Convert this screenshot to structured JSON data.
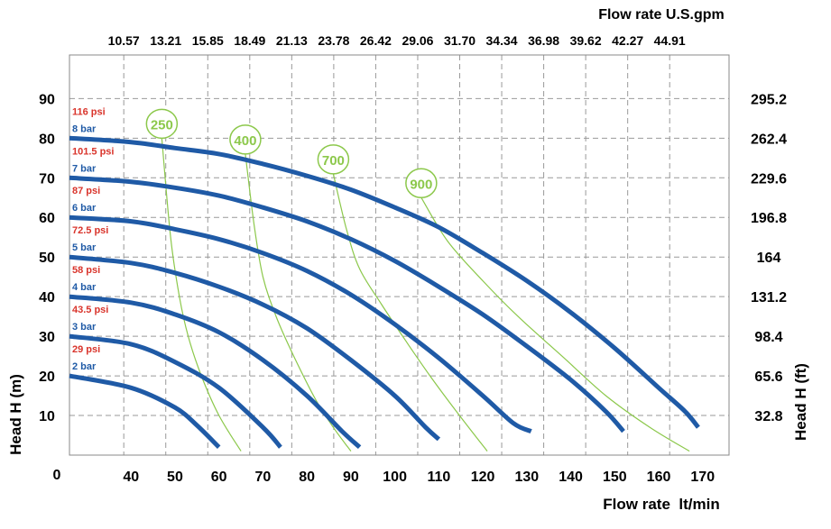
{
  "chart_data": {
    "type": "line",
    "top_axis_title": "Flow rate U.S.gpm",
    "bottom_axis_title": "Flow rate  lt/min",
    "left_axis_title": "Head H (m)",
    "right_axis_title": "Head H (ft)",
    "origin_label": "0",
    "x_range": [
      26,
      176
    ],
    "y_range": [
      0,
      101
    ],
    "x_ticks": [
      40,
      50,
      60,
      70,
      80,
      90,
      100,
      110,
      120,
      130,
      140,
      150,
      160,
      170
    ],
    "x_tick_labels": [
      "40",
      "50",
      "60",
      "70",
      "80",
      "90",
      "100",
      "110",
      "120",
      "130",
      "140",
      "150",
      "160",
      "170"
    ],
    "top_ticks": [
      38.35,
      47.9,
      57.45,
      67.0,
      76.55,
      86.1,
      95.65,
      105.2,
      114.75,
      124.3,
      133.85,
      143.4,
      152.95,
      162.5
    ],
    "top_tick_labels": [
      "10.57",
      "13.21",
      "15.85",
      "18.49",
      "21.13",
      "23.78",
      "26.42",
      "29.06",
      "31.70",
      "34.34",
      "36.98",
      "39.62",
      "42.27",
      "44.91"
    ],
    "y_ticks": [
      10,
      20,
      30,
      40,
      50,
      60,
      70,
      80,
      90
    ],
    "y_tick_labels": [
      "10",
      "20",
      "30",
      "40",
      "50",
      "60",
      "70",
      "80",
      "90"
    ],
    "right_ticks": [
      10,
      20,
      30,
      40,
      50,
      60,
      70,
      80,
      90
    ],
    "right_tick_labels": [
      "32.8",
      "65.6",
      "98.4",
      "131.2",
      "164",
      "196.8",
      "229.6",
      "262.4",
      "295.2"
    ],
    "grid": true,
    "colors": {
      "curve": "#1f5aa6",
      "efficiency": "#8cc84b",
      "psi": "#d9342b",
      "bar": "#1f5aa6",
      "grid": "#999999"
    },
    "series": [
      {
        "name": "2 bar",
        "psi": "29 psi",
        "points": [
          [
            26,
            20
          ],
          [
            40,
            17
          ],
          [
            50,
            12
          ],
          [
            55,
            7.5
          ],
          [
            60,
            2
          ]
        ]
      },
      {
        "name": "3 bar",
        "psi": "43.5 psi",
        "points": [
          [
            26,
            30
          ],
          [
            40,
            28
          ],
          [
            50,
            23.5
          ],
          [
            60,
            17
          ],
          [
            70,
            7
          ],
          [
            74,
            2
          ]
        ]
      },
      {
        "name": "4 bar",
        "psi": "58 psi",
        "points": [
          [
            26,
            40
          ],
          [
            40,
            38.5
          ],
          [
            50,
            35.5
          ],
          [
            60,
            31
          ],
          [
            70,
            24
          ],
          [
            80,
            15
          ],
          [
            88,
            6
          ],
          [
            92,
            2
          ]
        ]
      },
      {
        "name": "5 bar",
        "psi": "72.5 psi",
        "points": [
          [
            26,
            50
          ],
          [
            40,
            48.5
          ],
          [
            50,
            46
          ],
          [
            60,
            42.5
          ],
          [
            70,
            38
          ],
          [
            80,
            32
          ],
          [
            90,
            24
          ],
          [
            100,
            15
          ],
          [
            107,
            7
          ],
          [
            110,
            4
          ]
        ]
      },
      {
        "name": "6 bar",
        "psi": "87 psi",
        "points": [
          [
            26,
            60
          ],
          [
            40,
            59
          ],
          [
            50,
            57
          ],
          [
            60,
            54.5
          ],
          [
            70,
            51
          ],
          [
            80,
            46.5
          ],
          [
            90,
            40.5
          ],
          [
            100,
            33
          ],
          [
            110,
            24.5
          ],
          [
            120,
            15
          ],
          [
            127,
            8
          ],
          [
            131,
            6
          ]
        ]
      },
      {
        "name": "7 bar",
        "psi": "101.5 psi",
        "points": [
          [
            26,
            70
          ],
          [
            40,
            69
          ],
          [
            50,
            67.5
          ],
          [
            60,
            65.5
          ],
          [
            70,
            62.5
          ],
          [
            80,
            59
          ],
          [
            90,
            54.5
          ],
          [
            100,
            49
          ],
          [
            110,
            42.5
          ],
          [
            120,
            35.5
          ],
          [
            130,
            27.5
          ],
          [
            140,
            19
          ],
          [
            148,
            11
          ],
          [
            152,
            6
          ]
        ]
      },
      {
        "name": "8 bar",
        "psi": "116 psi",
        "points": [
          [
            26,
            80
          ],
          [
            40,
            79
          ],
          [
            50,
            77.5
          ],
          [
            60,
            76
          ],
          [
            70,
            73.5
          ],
          [
            80,
            70.5
          ],
          [
            90,
            67
          ],
          [
            100,
            62.5
          ],
          [
            110,
            57.5
          ],
          [
            120,
            51
          ],
          [
            130,
            44
          ],
          [
            140,
            36
          ],
          [
            150,
            27
          ],
          [
            160,
            17
          ],
          [
            166,
            11
          ],
          [
            169,
            7
          ]
        ]
      }
    ],
    "efficiency_curves": [
      {
        "label": "250",
        "points": [
          [
            47,
            80
          ],
          [
            49,
            55
          ],
          [
            51,
            40
          ],
          [
            53,
            30
          ],
          [
            56,
            20
          ],
          [
            60,
            10
          ],
          [
            65,
            1
          ]
        ]
      },
      {
        "label": "400",
        "points": [
          [
            66,
            76
          ],
          [
            68,
            58
          ],
          [
            70,
            45
          ],
          [
            73,
            35
          ],
          [
            77,
            25
          ],
          [
            82,
            14
          ],
          [
            86,
            7
          ],
          [
            90,
            1
          ]
        ]
      },
      {
        "label": "700",
        "points": [
          [
            86,
            71
          ],
          [
            89,
            57
          ],
          [
            92,
            47
          ],
          [
            97,
            38
          ],
          [
            103,
            28
          ],
          [
            108,
            20
          ],
          [
            114,
            11
          ],
          [
            121,
            1
          ]
        ]
      },
      {
        "label": "900",
        "points": [
          [
            106,
            65
          ],
          [
            112,
            54
          ],
          [
            120,
            44
          ],
          [
            128,
            35
          ],
          [
            138,
            25
          ],
          [
            148,
            15
          ],
          [
            158,
            7
          ],
          [
            167,
            1
          ]
        ]
      }
    ]
  }
}
